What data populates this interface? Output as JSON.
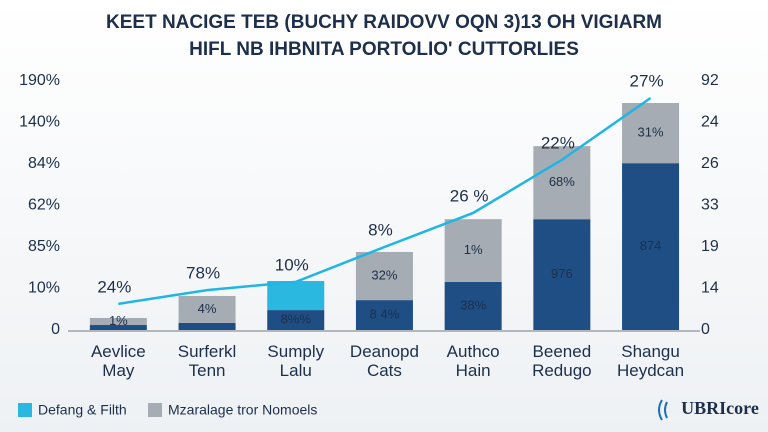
{
  "chart_data": {
    "type": "bar",
    "title": "KEET NACIGE TEB (BUCHY RAIDOVV OQN 3)13 OH VIGIARM",
    "subtitle": "HIFL NB IHBNITA PORTOLIO' CUTTORLIES",
    "categories": [
      "Aevlice\nMay",
      "Surferkl\nTenn",
      "Sumply\nLalu",
      "Deanopd\nCats",
      "Authco\nHain",
      "Beened\nRedugo",
      "Shangu\nHeydcan"
    ],
    "series": [
      {
        "color": "#1f4e85",
        "values": [
          0.12,
          0.17,
          0.48,
          0.72,
          1.16,
          2.67,
          4.02
        ],
        "labels": [
          null,
          null,
          "8%%",
          "8 4%",
          "38%",
          "976",
          "874"
        ]
      },
      {
        "name": "Mzaralage tror Nomoels",
        "color": "#a5acb3",
        "values": [
          0.17,
          0.65,
          null,
          1.16,
          1.51,
          1.76,
          1.45
        ],
        "labels": [
          "1%",
          "4%",
          null,
          "32%",
          "1%",
          "68%",
          "31%"
        ]
      },
      {
        "name": "Defang & Filth",
        "color": "#2ab7e0",
        "values": [
          null,
          null,
          0.7,
          null,
          null,
          null,
          null
        ],
        "labels": [
          null,
          null,
          null,
          null,
          null,
          null,
          null
        ]
      }
    ],
    "line": {
      "color": "#1fb6e4",
      "values": [
        0.63,
        0.96,
        1.16,
        2.0,
        2.82,
        4.1,
        5.59
      ],
      "labels": [
        "24%",
        "78%",
        "10%",
        "8%",
        "26 %",
        "22%",
        "27%"
      ]
    },
    "ylim": [
      0,
      6
    ],
    "yticks": [
      {
        "value": 0,
        "label": "0"
      },
      {
        "value": 1,
        "label": "10%"
      },
      {
        "value": 2,
        "label": "85%"
      },
      {
        "value": 3,
        "label": "62%"
      },
      {
        "value": 4,
        "label": "84%"
      },
      {
        "value": 5,
        "label": "140%"
      },
      {
        "value": 6,
        "label": "190%"
      }
    ],
    "y2lim": [
      0,
      6
    ],
    "y2ticks": [
      {
        "value": 0,
        "label": "0"
      },
      {
        "value": 1,
        "label": "14"
      },
      {
        "value": 2,
        "label": "19"
      },
      {
        "value": 3,
        "label": "33"
      },
      {
        "value": 4,
        "label": "26"
      },
      {
        "value": 5,
        "label": "24"
      },
      {
        "value": 6,
        "label": "92"
      }
    ],
    "logo": "UBRIcore",
    "grid": false
  }
}
